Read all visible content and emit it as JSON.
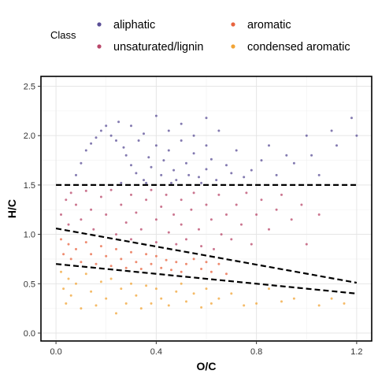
{
  "chart_data": {
    "type": "scatter",
    "title": "",
    "xlabel": "O/C",
    "ylabel": "H/C",
    "xlim": [
      -0.06,
      1.26
    ],
    "ylim": [
      -0.08,
      2.6
    ],
    "x_ticks": [
      0.0,
      0.4,
      0.8,
      1.2
    ],
    "y_ticks": [
      0.0,
      0.5,
      1.0,
      1.5,
      2.0,
      2.5
    ],
    "x_tick_labels": [
      "0.0",
      "0.4",
      "0.8",
      "1.2"
    ],
    "y_tick_labels": [
      "0.0",
      "0.5",
      "1.0",
      "1.5",
      "2.0",
      "2.5"
    ],
    "grid": true,
    "legend": {
      "title": "Class",
      "position": "top",
      "entries": [
        {
          "name": "aliphatic",
          "color": "#5a4e96"
        },
        {
          "name": "aromatic",
          "color": "#e8643f"
        },
        {
          "name": "unsaturated/lignin",
          "color": "#b9476a"
        },
        {
          "name": "condensed aromatic",
          "color": "#f2a436"
        }
      ]
    },
    "series": [
      {
        "name": "aliphatic",
        "color": "#5a4e96",
        "points": [
          [
            0.08,
            1.6
          ],
          [
            0.1,
            1.72
          ],
          [
            0.12,
            1.85
          ],
          [
            0.14,
            1.92
          ],
          [
            0.16,
            1.98
          ],
          [
            0.18,
            2.05
          ],
          [
            0.2,
            2.1
          ],
          [
            0.22,
            2.0
          ],
          [
            0.24,
            1.95
          ],
          [
            0.25,
            2.14
          ],
          [
            0.27,
            1.88
          ],
          [
            0.28,
            1.8
          ],
          [
            0.3,
            2.1
          ],
          [
            0.3,
            1.7
          ],
          [
            0.32,
            1.62
          ],
          [
            0.33,
            1.95
          ],
          [
            0.35,
            1.55
          ],
          [
            0.35,
            2.02
          ],
          [
            0.37,
            1.78
          ],
          [
            0.38,
            1.68
          ],
          [
            0.4,
            2.2
          ],
          [
            0.4,
            1.9
          ],
          [
            0.42,
            1.6
          ],
          [
            0.43,
            1.75
          ],
          [
            0.45,
            1.85
          ],
          [
            0.45,
            2.05
          ],
          [
            0.47,
            1.65
          ],
          [
            0.48,
            1.55
          ],
          [
            0.5,
            1.95
          ],
          [
            0.5,
            2.12
          ],
          [
            0.52,
            1.72
          ],
          [
            0.53,
            1.6
          ],
          [
            0.55,
            1.82
          ],
          [
            0.55,
            2.0
          ],
          [
            0.57,
            1.58
          ],
          [
            0.6,
            1.9
          ],
          [
            0.6,
            1.66
          ],
          [
            0.62,
            1.76
          ],
          [
            0.64,
            1.55
          ],
          [
            0.65,
            2.05
          ],
          [
            0.68,
            1.7
          ],
          [
            0.7,
            1.62
          ],
          [
            0.72,
            1.85
          ],
          [
            0.75,
            1.58
          ],
          [
            0.78,
            1.65
          ],
          [
            0.82,
            1.75
          ],
          [
            0.85,
            1.9
          ],
          [
            0.88,
            1.6
          ],
          [
            0.92,
            1.8
          ],
          [
            0.95,
            1.72
          ],
          [
            1.0,
            2.0
          ],
          [
            1.02,
            1.8
          ],
          [
            1.05,
            1.6
          ],
          [
            1.1,
            2.05
          ],
          [
            1.12,
            1.9
          ],
          [
            1.18,
            2.18
          ],
          [
            1.2,
            2.0
          ],
          [
            0.6,
            2.18
          ],
          [
            0.58,
            1.52
          ],
          [
            0.46,
            1.52
          ],
          [
            0.36,
            1.52
          ],
          [
            0.26,
            1.52
          ]
        ]
      },
      {
        "name": "unsaturated/lignin",
        "color": "#b9476a",
        "points": [
          [
            0.02,
            1.2
          ],
          [
            0.04,
            1.35
          ],
          [
            0.05,
            1.1
          ],
          [
            0.06,
            1.42
          ],
          [
            0.08,
            1.3
          ],
          [
            0.1,
            1.15
          ],
          [
            0.12,
            1.44
          ],
          [
            0.14,
            1.25
          ],
          [
            0.15,
            1.05
          ],
          [
            0.18,
            1.38
          ],
          [
            0.2,
            1.2
          ],
          [
            0.22,
            1.45
          ],
          [
            0.24,
            1.0
          ],
          [
            0.26,
            1.3
          ],
          [
            0.28,
            1.12
          ],
          [
            0.3,
            1.4
          ],
          [
            0.3,
            0.95
          ],
          [
            0.32,
            1.22
          ],
          [
            0.34,
            1.05
          ],
          [
            0.36,
            1.35
          ],
          [
            0.38,
            1.45
          ],
          [
            0.4,
            1.15
          ],
          [
            0.4,
            0.92
          ],
          [
            0.42,
            1.28
          ],
          [
            0.44,
            1.4
          ],
          [
            0.45,
            1.02
          ],
          [
            0.47,
            1.2
          ],
          [
            0.48,
            0.9
          ],
          [
            0.5,
            1.35
          ],
          [
            0.5,
            1.1
          ],
          [
            0.52,
            0.95
          ],
          [
            0.54,
            1.25
          ],
          [
            0.55,
            1.42
          ],
          [
            0.57,
            1.05
          ],
          [
            0.58,
            0.88
          ],
          [
            0.6,
            1.3
          ],
          [
            0.62,
            1.15
          ],
          [
            0.63,
            0.85
          ],
          [
            0.65,
            1.4
          ],
          [
            0.66,
            1.0
          ],
          [
            0.68,
            1.2
          ],
          [
            0.7,
            0.95
          ],
          [
            0.72,
            1.3
          ],
          [
            0.74,
            1.1
          ],
          [
            0.76,
            1.42
          ],
          [
            0.78,
            0.9
          ],
          [
            0.8,
            1.2
          ],
          [
            0.82,
            1.35
          ],
          [
            0.85,
            1.05
          ],
          [
            0.88,
            1.25
          ],
          [
            0.9,
            1.4
          ],
          [
            0.94,
            1.15
          ],
          [
            0.98,
            1.3
          ],
          [
            1.0,
            0.9
          ],
          [
            1.05,
            1.2
          ]
        ]
      },
      {
        "name": "aromatic",
        "color": "#e8643f",
        "points": [
          [
            0.02,
            0.95
          ],
          [
            0.03,
            0.8
          ],
          [
            0.05,
            0.9
          ],
          [
            0.06,
            0.75
          ],
          [
            0.08,
            0.85
          ],
          [
            0.1,
            0.72
          ],
          [
            0.12,
            0.92
          ],
          [
            0.14,
            0.8
          ],
          [
            0.16,
            0.7
          ],
          [
            0.18,
            0.88
          ],
          [
            0.2,
            0.78
          ],
          [
            0.22,
            0.68
          ],
          [
            0.24,
            0.85
          ],
          [
            0.26,
            0.75
          ],
          [
            0.28,
            0.66
          ],
          [
            0.3,
            0.82
          ],
          [
            0.32,
            0.72
          ],
          [
            0.34,
            0.65
          ],
          [
            0.36,
            0.8
          ],
          [
            0.38,
            0.7
          ],
          [
            0.4,
            0.78
          ],
          [
            0.42,
            0.66
          ],
          [
            0.44,
            0.74
          ],
          [
            0.46,
            0.64
          ],
          [
            0.48,
            0.72
          ],
          [
            0.5,
            0.62
          ],
          [
            0.52,
            0.7
          ],
          [
            0.55,
            0.75
          ],
          [
            0.58,
            0.65
          ],
          [
            0.6,
            0.72
          ],
          [
            0.62,
            0.62
          ],
          [
            0.65,
            0.7
          ],
          [
            0.68,
            0.6
          ]
        ]
      },
      {
        "name": "condensed aromatic",
        "color": "#f2a436",
        "points": [
          [
            0.02,
            0.62
          ],
          [
            0.03,
            0.45
          ],
          [
            0.04,
            0.3
          ],
          [
            0.05,
            0.55
          ],
          [
            0.06,
            0.38
          ],
          [
            0.08,
            0.5
          ],
          [
            0.1,
            0.25
          ],
          [
            0.12,
            0.6
          ],
          [
            0.14,
            0.42
          ],
          [
            0.16,
            0.28
          ],
          [
            0.18,
            0.52
          ],
          [
            0.2,
            0.35
          ],
          [
            0.22,
            0.55
          ],
          [
            0.24,
            0.2
          ],
          [
            0.26,
            0.45
          ],
          [
            0.28,
            0.3
          ],
          [
            0.3,
            0.5
          ],
          [
            0.32,
            0.38
          ],
          [
            0.34,
            0.25
          ],
          [
            0.36,
            0.48
          ],
          [
            0.38,
            0.3
          ],
          [
            0.4,
            0.45
          ],
          [
            0.42,
            0.35
          ],
          [
            0.45,
            0.28
          ],
          [
            0.48,
            0.42
          ],
          [
            0.5,
            0.5
          ],
          [
            0.52,
            0.32
          ],
          [
            0.55,
            0.4
          ],
          [
            0.58,
            0.26
          ],
          [
            0.6,
            0.45
          ],
          [
            0.62,
            0.3
          ],
          [
            0.65,
            0.35
          ],
          [
            0.7,
            0.4
          ],
          [
            0.75,
            0.28
          ],
          [
            0.8,
            0.3
          ],
          [
            0.85,
            0.45
          ],
          [
            0.9,
            0.32
          ],
          [
            0.95,
            0.35
          ],
          [
            1.05,
            0.28
          ],
          [
            1.1,
            0.35
          ],
          [
            1.15,
            0.3
          ]
        ]
      }
    ],
    "reference_lines": [
      {
        "x": [
          0.0,
          1.2
        ],
        "y": [
          1.5,
          1.5
        ]
      },
      {
        "x": [
          0.0,
          1.2
        ],
        "y": [
          1.06,
          0.51
        ]
      },
      {
        "x": [
          0.0,
          1.2
        ],
        "y": [
          0.7,
          0.4
        ]
      }
    ]
  }
}
